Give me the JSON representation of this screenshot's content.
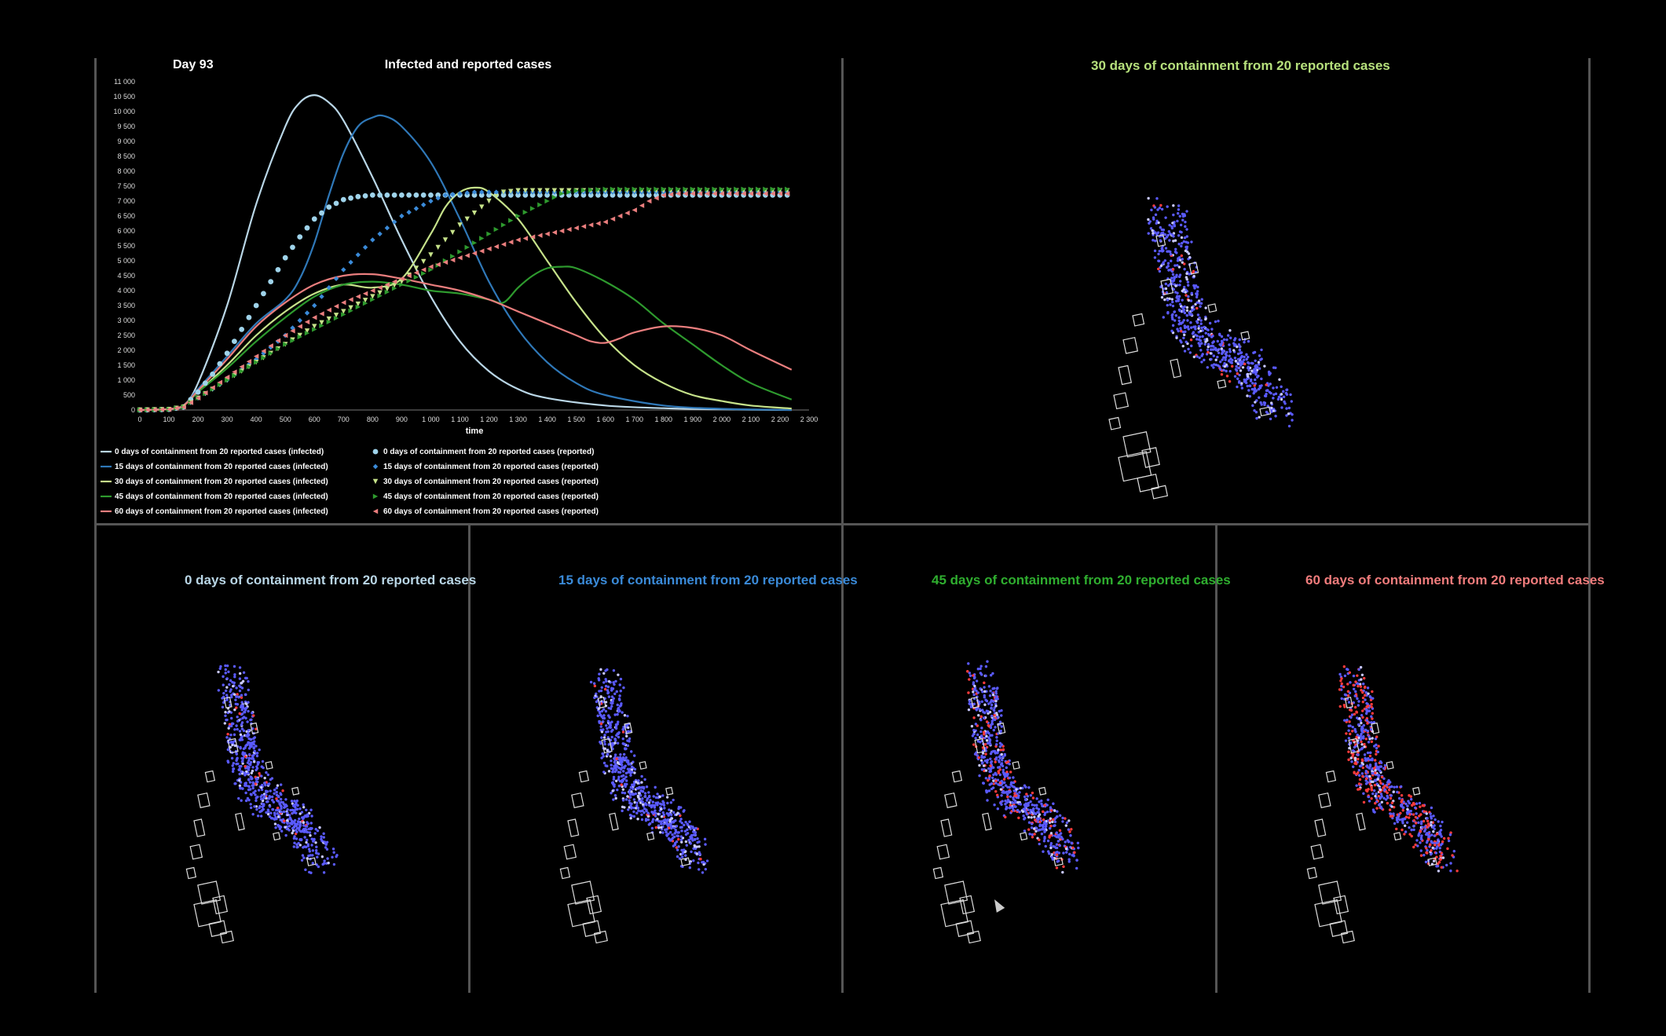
{
  "day_label": "Day 93",
  "colors": {
    "c0": "#b9d6e6",
    "c15": "#2f78b8",
    "c30": "#c6e28a",
    "c45": "#2e9a2e",
    "c60": "#ea7e7e",
    "grid": "#555555"
  },
  "panels": {
    "top_right": {
      "title": "30 days of containment from 20 reported cases",
      "color": "#b6e07c"
    },
    "bottom": [
      {
        "title": "0 days of containment from 20 reported cases",
        "color": "#b9d6e6"
      },
      {
        "title": "15 days of containment from 20 reported cases",
        "color": "#3a8ad8"
      },
      {
        "title": "45 days of containment from 20 reported cases",
        "color": "#2fae2f"
      },
      {
        "title": "60 days of containment from 20 reported cases",
        "color": "#f07c7c"
      }
    ]
  },
  "chart_data": {
    "type": "line",
    "title": "Infected and reported cases",
    "xlabel": "time",
    "ylabel": "",
    "xlim": [
      0,
      2300
    ],
    "ylim": [
      0,
      11000
    ],
    "x_ticks": [
      0,
      100,
      200,
      300,
      400,
      500,
      600,
      700,
      800,
      900,
      1000,
      1100,
      1200,
      1300,
      1400,
      1500,
      1600,
      1700,
      1800,
      1900,
      2000,
      2100,
      2200,
      2300
    ],
    "x_tick_labels": [
      "0",
      "100",
      "200",
      "300",
      "400",
      "500",
      "600",
      "700",
      "800",
      "900",
      "1 000",
      "1 100",
      "1 200",
      "1 300",
      "1 400",
      "1 500",
      "1 600",
      "1 700",
      "1 800",
      "1 900",
      "2 000",
      "2 100",
      "2 200",
      "2 300"
    ],
    "y_ticks": [
      0,
      500,
      1000,
      1500,
      2000,
      2500,
      3000,
      3500,
      4000,
      4500,
      5000,
      5500,
      6000,
      6500,
      7000,
      7500,
      8000,
      8500,
      9000,
      9500,
      10000,
      10500,
      11000
    ],
    "y_tick_labels": [
      "0",
      "500",
      "1 000",
      "1 500",
      "2 000",
      "2 500",
      "3 000",
      "3 500",
      "4 000",
      "4 500",
      "5 000",
      "5 500",
      "6 000",
      "6 500",
      "7 000",
      "7 500",
      "8 000",
      "8 500",
      "9 000",
      "9 500",
      "10 000",
      "10 500",
      "11 000"
    ],
    "series": [
      {
        "name": "0 days of containment from 20 reported cases (infected)",
        "kind": "line",
        "color": "#b9d6e6",
        "x": [
          0,
          100,
          150,
          200,
          300,
          400,
          500,
          550,
          600,
          650,
          700,
          800,
          900,
          1000,
          1100,
          1200,
          1300,
          1400,
          1600,
          1800,
          2000,
          2240
        ],
        "y": [
          0,
          30,
          150,
          900,
          3500,
          6900,
          9500,
          10300,
          10550,
          10300,
          9700,
          7800,
          5700,
          3800,
          2300,
          1300,
          700,
          400,
          150,
          60,
          20,
          0
        ]
      },
      {
        "name": "15 days of containment from 20 reported cases (infected)",
        "kind": "line",
        "color": "#2f78b8",
        "x": [
          0,
          100,
          150,
          200,
          300,
          400,
          500,
          550,
          600,
          650,
          700,
          750,
          800,
          840,
          900,
          1000,
          1100,
          1200,
          1300,
          1400,
          1500,
          1600,
          1800,
          2000,
          2240
        ],
        "y": [
          0,
          30,
          150,
          700,
          1800,
          2900,
          3700,
          4400,
          5600,
          7200,
          8600,
          9500,
          9800,
          9850,
          9500,
          8300,
          6400,
          4300,
          2700,
          1600,
          900,
          500,
          150,
          40,
          0
        ]
      },
      {
        "name": "30 days of containment from 20 reported cases (infected)",
        "kind": "line",
        "color": "#c6e28a",
        "x": [
          0,
          100,
          150,
          200,
          300,
          400,
          500,
          600,
          700,
          800,
          900,
          1000,
          1050,
          1100,
          1150,
          1200,
          1300,
          1400,
          1500,
          1600,
          1700,
          1800,
          1900,
          2000,
          2100,
          2240
        ],
        "y": [
          0,
          30,
          150,
          600,
          1500,
          2500,
          3300,
          3900,
          4200,
          4100,
          4400,
          5900,
          6800,
          7300,
          7450,
          7300,
          6400,
          5000,
          3600,
          2400,
          1500,
          900,
          500,
          300,
          150,
          50
        ]
      },
      {
        "name": "45 days of containment from 20 reported cases (infected)",
        "kind": "line",
        "color": "#2e9a2e",
        "x": [
          0,
          100,
          150,
          200,
          300,
          400,
          500,
          600,
          700,
          800,
          900,
          1000,
          1100,
          1200,
          1250,
          1300,
          1350,
          1400,
          1450,
          1500,
          1600,
          1700,
          1800,
          1900,
          2000,
          2100,
          2240
        ],
        "y": [
          0,
          30,
          150,
          600,
          1400,
          2300,
          3100,
          3800,
          4200,
          4300,
          4200,
          4000,
          3900,
          3700,
          3600,
          4100,
          4500,
          4750,
          4800,
          4750,
          4300,
          3700,
          2900,
          2200,
          1500,
          900,
          350
        ]
      },
      {
        "name": "60 days of containment from 20 reported cases (infected)",
        "kind": "line",
        "color": "#ea7e7e",
        "x": [
          0,
          100,
          150,
          200,
          300,
          400,
          500,
          600,
          700,
          800,
          900,
          1000,
          1100,
          1200,
          1300,
          1400,
          1500,
          1550,
          1600,
          1650,
          1700,
          1800,
          1900,
          2000,
          2100,
          2240
        ],
        "y": [
          0,
          30,
          150,
          650,
          1700,
          2800,
          3600,
          4200,
          4500,
          4550,
          4400,
          4200,
          4000,
          3700,
          3300,
          2900,
          2500,
          2300,
          2250,
          2400,
          2600,
          2800,
          2750,
          2500,
          2000,
          1350
        ]
      },
      {
        "name": "0 days of containment from 20 reported cases (reported)",
        "kind": "dots",
        "marker": "circle",
        "color": "#9fd3ea",
        "x": [
          0,
          100,
          150,
          200,
          250,
          300,
          350,
          400,
          450,
          500,
          550,
          600,
          650,
          700,
          750,
          800,
          850,
          900,
          1000,
          1100,
          1200,
          1300,
          1400,
          1500,
          1600,
          1700,
          1800,
          1900,
          2000,
          2100,
          2240
        ],
        "y": [
          0,
          20,
          100,
          600,
          1200,
          1900,
          2700,
          3500,
          4300,
          5100,
          5800,
          6400,
          6800,
          7050,
          7150,
          7200,
          7200,
          7200,
          7200,
          7200,
          7200,
          7200,
          7200,
          7200,
          7200,
          7200,
          7200,
          7200,
          7200,
          7200,
          7200
        ]
      },
      {
        "name": "15 days of containment from 20 reported cases (reported)",
        "kind": "dots",
        "marker": "diamond",
        "color": "#3a8ad8",
        "x": [
          0,
          100,
          150,
          200,
          300,
          400,
          500,
          600,
          700,
          800,
          900,
          1000,
          1050,
          1100,
          1150,
          1200,
          1300,
          1400,
          1500,
          1600,
          1700,
          1800,
          1900,
          2000,
          2100,
          2240
        ],
        "y": [
          0,
          20,
          100,
          400,
          1000,
          1700,
          2500,
          3500,
          4700,
          5700,
          6500,
          7000,
          7200,
          7250,
          7300,
          7300,
          7300,
          7300,
          7300,
          7300,
          7300,
          7300,
          7300,
          7300,
          7300,
          7300
        ]
      },
      {
        "name": "30 days of containment from 20 reported cases (reported)",
        "kind": "dots",
        "marker": "tri-down",
        "color": "#c6e28a",
        "x": [
          0,
          100,
          150,
          200,
          300,
          400,
          500,
          600,
          700,
          800,
          900,
          1000,
          1100,
          1200,
          1250,
          1300,
          1400,
          1500,
          1600,
          1700,
          1800,
          1900,
          2000,
          2100,
          2240
        ],
        "y": [
          0,
          20,
          100,
          400,
          1000,
          1600,
          2200,
          2800,
          3300,
          3800,
          4300,
          5200,
          6200,
          7000,
          7300,
          7350,
          7350,
          7350,
          7350,
          7350,
          7350,
          7350,
          7350,
          7350,
          7350
        ]
      },
      {
        "name": "45 days of containment from 20 reported cases (reported)",
        "kind": "dots",
        "marker": "tri-right",
        "color": "#2e9a2e",
        "x": [
          0,
          100,
          150,
          200,
          300,
          400,
          500,
          600,
          700,
          800,
          900,
          1000,
          1100,
          1200,
          1300,
          1400,
          1450,
          1500,
          1600,
          1700,
          1800,
          1900,
          2000,
          2100,
          2240
        ],
        "y": [
          0,
          20,
          100,
          400,
          1000,
          1600,
          2200,
          2700,
          3200,
          3700,
          4200,
          4700,
          5300,
          5900,
          6500,
          7000,
          7250,
          7350,
          7400,
          7400,
          7400,
          7400,
          7400,
          7400,
          7400
        ]
      },
      {
        "name": "60 days of containment from 20 reported cases (reported)",
        "kind": "dots",
        "marker": "tri-left",
        "color": "#ea7e7e",
        "x": [
          0,
          100,
          150,
          200,
          300,
          400,
          500,
          600,
          700,
          800,
          900,
          1000,
          1100,
          1200,
          1300,
          1400,
          1500,
          1600,
          1700,
          1750,
          1800,
          1850,
          1900,
          2000,
          2100,
          2240
        ],
        "y": [
          0,
          20,
          100,
          400,
          1100,
          1800,
          2500,
          3100,
          3600,
          4000,
          4400,
          4800,
          5100,
          5400,
          5700,
          5900,
          6100,
          6300,
          6700,
          7000,
          7200,
          7250,
          7250,
          7250,
          7250,
          7250
        ]
      }
    ],
    "legend": {
      "placement": "bottom",
      "left_entries": [
        "0 days of containment from 20 reported cases (infected)",
        "15 days of containment from 20 reported cases (infected)",
        "30 days of containment from 20 reported cases (infected)",
        "45 days of containment from 20 reported cases (infected)",
        "60 days of containment from 20 reported cases (infected)"
      ],
      "right_entries": [
        "0 days of containment from 20 reported cases (reported)",
        "15 days of containment from 20 reported cases (reported)",
        "30 days of containment from 20 reported cases (reported)",
        "45 days of containment from 20 reported cases (reported)",
        "60 days of containment from 20 reported cases (reported)"
      ]
    }
  }
}
